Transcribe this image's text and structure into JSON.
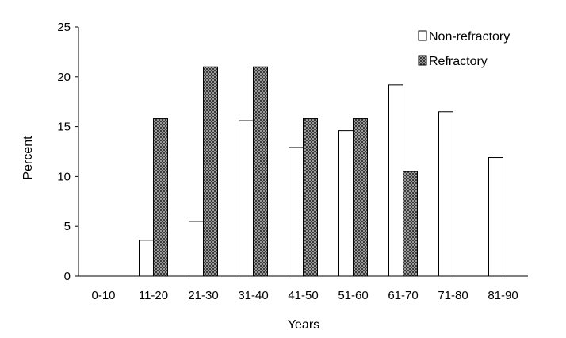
{
  "chart_data": {
    "type": "bar",
    "title": "",
    "xlabel": "Years",
    "ylabel": "Percent",
    "ylim": [
      0,
      25
    ],
    "yticks": [
      0,
      5,
      10,
      15,
      20,
      25
    ],
    "grid": false,
    "legend_position": "top-right",
    "categories": [
      "0-10",
      "11-20",
      "21-30",
      "31-40",
      "41-50",
      "51-60",
      "61-70",
      "71-80",
      "81-90"
    ],
    "series": [
      {
        "name": "Non-refractory",
        "fill": "#ffffff",
        "pattern": "none",
        "values": [
          0,
          3.6,
          5.5,
          15.6,
          12.9,
          14.6,
          19.2,
          16.5,
          11.9
        ]
      },
      {
        "name": "Refractory",
        "fill": "#3a3a3a",
        "pattern": "checkered",
        "values": [
          0,
          15.8,
          21.0,
          21.0,
          15.8,
          15.8,
          10.5,
          0,
          0
        ]
      }
    ]
  }
}
